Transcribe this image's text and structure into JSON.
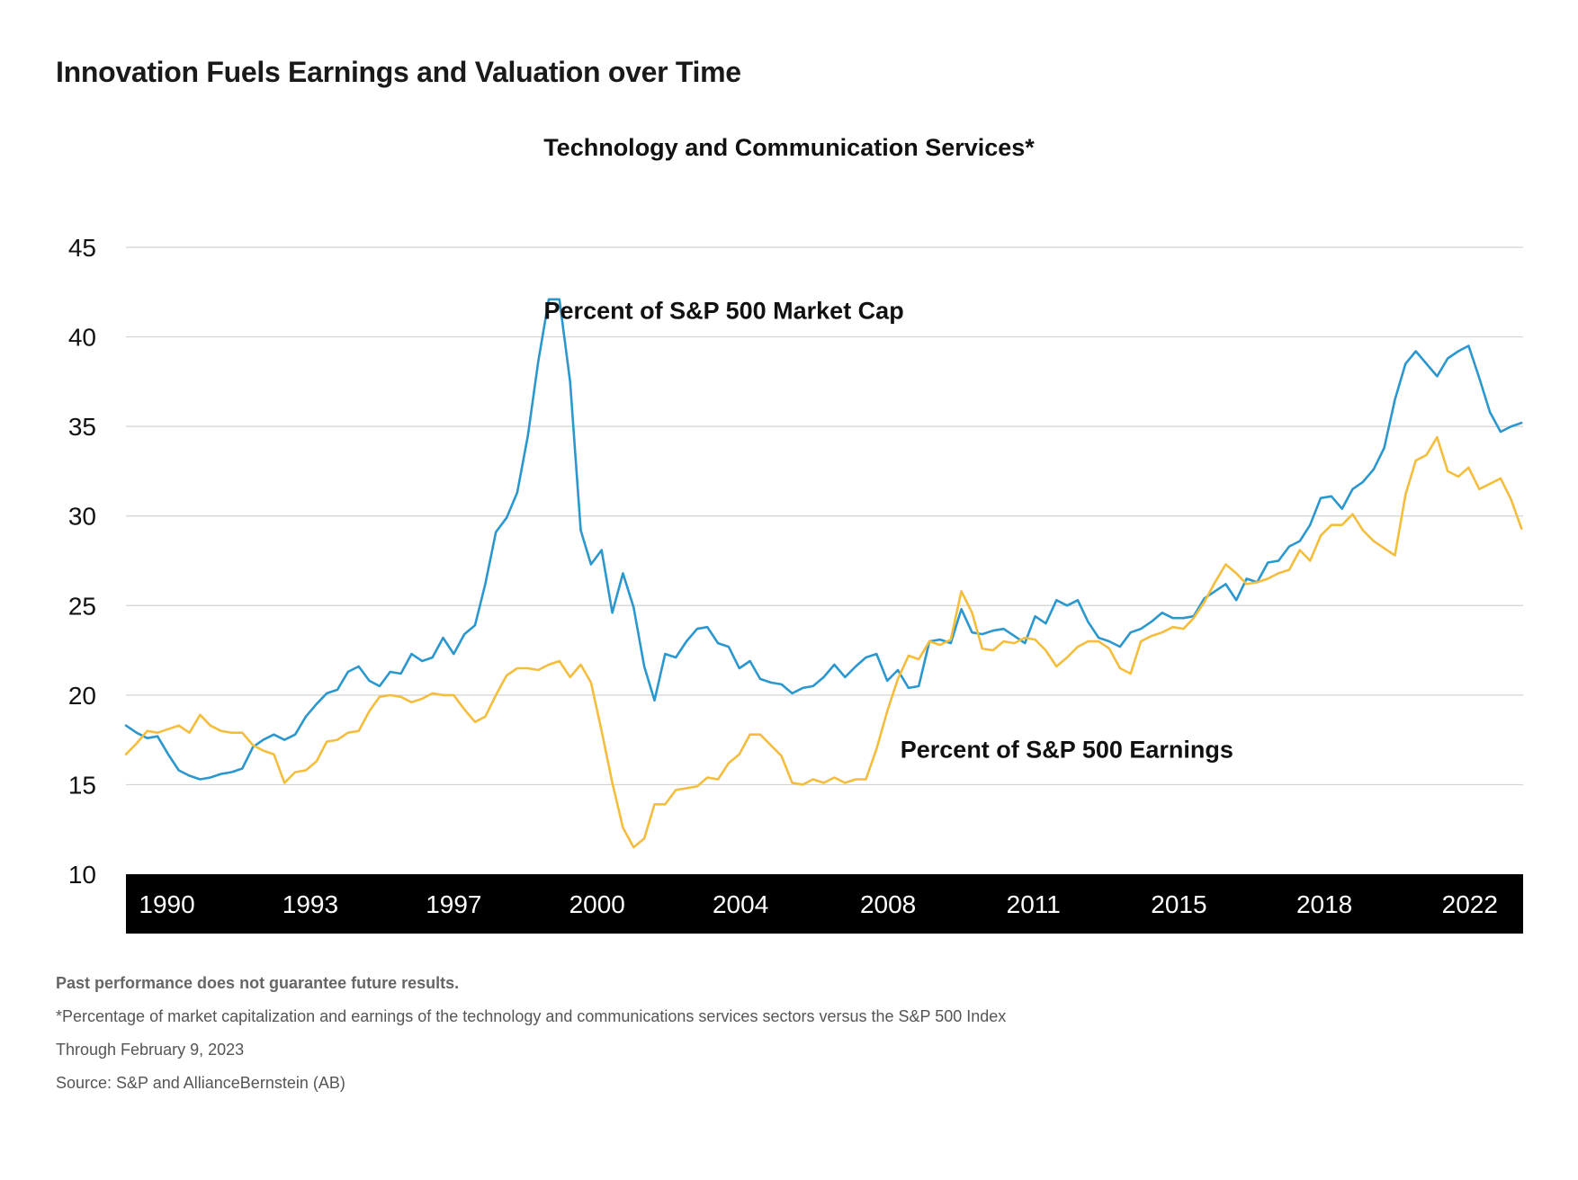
{
  "page": {
    "title": "Innovation Fuels Earnings and Valuation over Time"
  },
  "colors": {
    "market_cap": "#2b97cf",
    "earnings": "#f5bd3c",
    "axis_band": "#000000",
    "gridline": "#d3d3d3"
  },
  "notes": {
    "disclaimer": "Past performance does not guarantee future results.",
    "footnote": "*Percentage of market capitalization and earnings of the technology and communications services sectors versus the S&P 500 Index",
    "through": "Through February 9, 2023",
    "source": "Source: S&P and AllianceBernstein (AB)"
  },
  "chart_data": {
    "type": "line",
    "title": "Technology and Communication Services*",
    "xlabel": "",
    "ylabel": "",
    "ylim": [
      10,
      45
    ],
    "xlim": [
      1989.0,
      2023.1
    ],
    "yticks": [
      10,
      15,
      20,
      25,
      30,
      35,
      40,
      45
    ],
    "xticks": [
      {
        "label": "1990",
        "year": 1990.0
      },
      {
        "label": "1993",
        "year": 1993.5
      },
      {
        "label": "1997",
        "year": 1997.0
      },
      {
        "label": "2000",
        "year": 2000.5
      },
      {
        "label": "2004",
        "year": 2004.0
      },
      {
        "label": "2008",
        "year": 2007.6
      },
      {
        "label": "2011",
        "year": 2011.15
      },
      {
        "label": "2015",
        "year": 2014.7
      },
      {
        "label": "2018",
        "year": 2018.25
      },
      {
        "label": "2022",
        "year": 2021.8
      }
    ],
    "grid": true,
    "series": [
      {
        "name": "Percent of S&P 500 Market Cap",
        "color": "#2b97cf",
        "annotation": {
          "text": "Percent of S&P 500 Market Cap",
          "x": 1999.2,
          "y": 41.0
        },
        "x": [
          1989.0,
          1989.26,
          1989.52,
          1989.77,
          1990.03,
          1990.29,
          1990.55,
          1990.81,
          1991.06,
          1991.32,
          1991.58,
          1991.84,
          1992.1,
          1992.35,
          1992.61,
          1992.87,
          1993.13,
          1993.39,
          1993.65,
          1993.9,
          1994.16,
          1994.42,
          1994.68,
          1994.94,
          1995.19,
          1995.45,
          1995.71,
          1995.97,
          1996.23,
          1996.48,
          1996.74,
          1997.0,
          1997.26,
          1997.52,
          1997.77,
          1998.03,
          1998.29,
          1998.55,
          1998.81,
          1999.06,
          1999.32,
          1999.58,
          1999.84,
          2000.1,
          2000.35,
          2000.61,
          2000.87,
          2001.13,
          2001.39,
          2001.65,
          2001.9,
          2002.16,
          2002.42,
          2002.68,
          2002.94,
          2003.19,
          2003.45,
          2003.71,
          2003.97,
          2004.23,
          2004.48,
          2004.74,
          2005.0,
          2005.26,
          2005.52,
          2005.77,
          2006.03,
          2006.29,
          2006.55,
          2006.81,
          2007.06,
          2007.32,
          2007.58,
          2007.84,
          2008.1,
          2008.35,
          2008.61,
          2008.87,
          2009.13,
          2009.39,
          2009.65,
          2009.9,
          2010.16,
          2010.42,
          2010.68,
          2010.94,
          2011.19,
          2011.45,
          2011.71,
          2011.97,
          2012.23,
          2012.48,
          2012.74,
          2013.0,
          2013.26,
          2013.52,
          2013.77,
          2014.03,
          2014.29,
          2014.55,
          2014.81,
          2015.06,
          2015.32,
          2015.58,
          2015.84,
          2016.1,
          2016.35,
          2016.61,
          2016.87,
          2017.13,
          2017.39,
          2017.65,
          2017.9,
          2018.16,
          2018.42,
          2018.68,
          2018.94,
          2019.19,
          2019.45,
          2019.71,
          2019.97,
          2020.23,
          2020.48,
          2020.74,
          2021.0,
          2021.26,
          2021.52,
          2021.77,
          2022.03,
          2022.29,
          2022.55,
          2022.81,
          2023.06
        ],
        "values": [
          18.3,
          17.9,
          17.6,
          17.7,
          16.7,
          15.8,
          15.5,
          15.3,
          15.4,
          15.6,
          15.7,
          15.9,
          17.1,
          17.5,
          17.8,
          17.5,
          17.8,
          18.8,
          19.5,
          20.1,
          20.3,
          21.3,
          21.6,
          20.8,
          20.5,
          21.3,
          21.2,
          22.3,
          21.9,
          22.1,
          23.2,
          22.3,
          23.4,
          23.9,
          26.2,
          29.1,
          29.9,
          31.3,
          34.5,
          38.6,
          42.1,
          42.1,
          37.5,
          29.2,
          27.3,
          28.1,
          24.6,
          26.8,
          24.9,
          21.6,
          19.7,
          22.3,
          22.1,
          23.0,
          23.7,
          23.8,
          22.9,
          22.7,
          21.5,
          21.9,
          20.9,
          20.7,
          20.6,
          20.1,
          20.4,
          20.5,
          21.0,
          21.7,
          21.0,
          21.6,
          22.1,
          22.3,
          20.8,
          21.4,
          20.4,
          20.5,
          23.0,
          23.1,
          22.9,
          24.8,
          23.5,
          23.4,
          23.6,
          23.7,
          23.3,
          22.9,
          24.4,
          24.0,
          25.3,
          25.0,
          25.3,
          24.1,
          23.2,
          23.0,
          22.7,
          23.5,
          23.7,
          24.1,
          24.6,
          24.3,
          24.3,
          24.4,
          25.4,
          25.8,
          26.2,
          25.3,
          26.5,
          26.3,
          27.4,
          27.5,
          28.3,
          28.6,
          29.5,
          31.0,
          31.1,
          30.4,
          31.5,
          31.9,
          32.6,
          33.8,
          36.5,
          38.5,
          39.2,
          38.5,
          37.8,
          38.8,
          39.2,
          39.5,
          37.7,
          35.8,
          34.7,
          35.0,
          35.2
        ]
      },
      {
        "name": "Percent of S&P 500 Earnings",
        "color": "#f5bd3c",
        "annotation": {
          "text": "Percent of S&P 500 Earnings",
          "x": 2007.9,
          "y": 16.5
        },
        "x": [
          1989.0,
          1989.26,
          1989.52,
          1989.77,
          1990.03,
          1990.29,
          1990.55,
          1990.81,
          1991.06,
          1991.32,
          1991.58,
          1991.84,
          1992.1,
          1992.35,
          1992.61,
          1992.87,
          1993.13,
          1993.39,
          1993.65,
          1993.9,
          1994.16,
          1994.42,
          1994.68,
          1994.94,
          1995.19,
          1995.45,
          1995.71,
          1995.97,
          1996.23,
          1996.48,
          1996.74,
          1997.0,
          1997.26,
          1997.52,
          1997.77,
          1998.03,
          1998.29,
          1998.55,
          1998.81,
          1999.06,
          1999.32,
          1999.58,
          1999.84,
          2000.1,
          2000.35,
          2000.61,
          2000.87,
          2001.13,
          2001.39,
          2001.65,
          2001.9,
          2002.16,
          2002.42,
          2002.68,
          2002.94,
          2003.19,
          2003.45,
          2003.71,
          2003.97,
          2004.23,
          2004.48,
          2004.74,
          2005.0,
          2005.26,
          2005.52,
          2005.77,
          2006.03,
          2006.29,
          2006.55,
          2006.81,
          2007.06,
          2007.32,
          2007.58,
          2007.84,
          2008.1,
          2008.35,
          2008.61,
          2008.87,
          2009.13,
          2009.39,
          2009.65,
          2009.9,
          2010.16,
          2010.42,
          2010.68,
          2010.94,
          2011.19,
          2011.45,
          2011.71,
          2011.97,
          2012.23,
          2012.48,
          2012.74,
          2013.0,
          2013.26,
          2013.52,
          2013.77,
          2014.03,
          2014.29,
          2014.55,
          2014.81,
          2015.06,
          2015.32,
          2015.58,
          2015.84,
          2016.1,
          2016.35,
          2016.61,
          2016.87,
          2017.13,
          2017.39,
          2017.65,
          2017.9,
          2018.16,
          2018.42,
          2018.68,
          2018.94,
          2019.19,
          2019.45,
          2019.71,
          2019.97,
          2020.23,
          2020.48,
          2020.74,
          2021.0,
          2021.26,
          2021.52,
          2021.77,
          2022.03,
          2022.29,
          2022.55,
          2022.81,
          2023.06
        ],
        "values": [
          16.7,
          17.3,
          18.0,
          17.9,
          18.1,
          18.3,
          17.9,
          18.9,
          18.3,
          18.0,
          17.9,
          17.9,
          17.2,
          16.9,
          16.7,
          15.1,
          15.7,
          15.8,
          16.3,
          17.4,
          17.5,
          17.9,
          18.0,
          19.1,
          19.9,
          20.0,
          19.9,
          19.6,
          19.8,
          20.1,
          20.0,
          20.0,
          19.2,
          18.5,
          18.8,
          20.0,
          21.1,
          21.5,
          21.5,
          21.4,
          21.7,
          21.9,
          21.0,
          21.7,
          20.7,
          18.0,
          15.1,
          12.6,
          11.5,
          12.0,
          13.9,
          13.9,
          14.7,
          14.8,
          14.9,
          15.4,
          15.3,
          16.2,
          16.7,
          17.8,
          17.8,
          17.2,
          16.6,
          15.1,
          15.0,
          15.3,
          15.1,
          15.4,
          15.1,
          15.3,
          15.3,
          17.0,
          19.1,
          20.9,
          22.2,
          22.0,
          23.0,
          22.8,
          23.1,
          25.8,
          24.6,
          22.6,
          22.5,
          23.0,
          22.9,
          23.2,
          23.1,
          22.5,
          21.6,
          22.1,
          22.7,
          23.0,
          23.0,
          22.6,
          21.5,
          21.2,
          23.0,
          23.3,
          23.5,
          23.8,
          23.7,
          24.3,
          25.2,
          26.3,
          27.3,
          26.8,
          26.2,
          26.3,
          26.5,
          26.8,
          27.0,
          28.1,
          27.5,
          28.9,
          29.5,
          29.5,
          30.1,
          29.2,
          28.6,
          28.2,
          27.8,
          31.2,
          33.1,
          33.4,
          34.4,
          32.5,
          32.2,
          32.7,
          31.5,
          31.8,
          32.1,
          30.9,
          29.3
        ]
      }
    ]
  }
}
